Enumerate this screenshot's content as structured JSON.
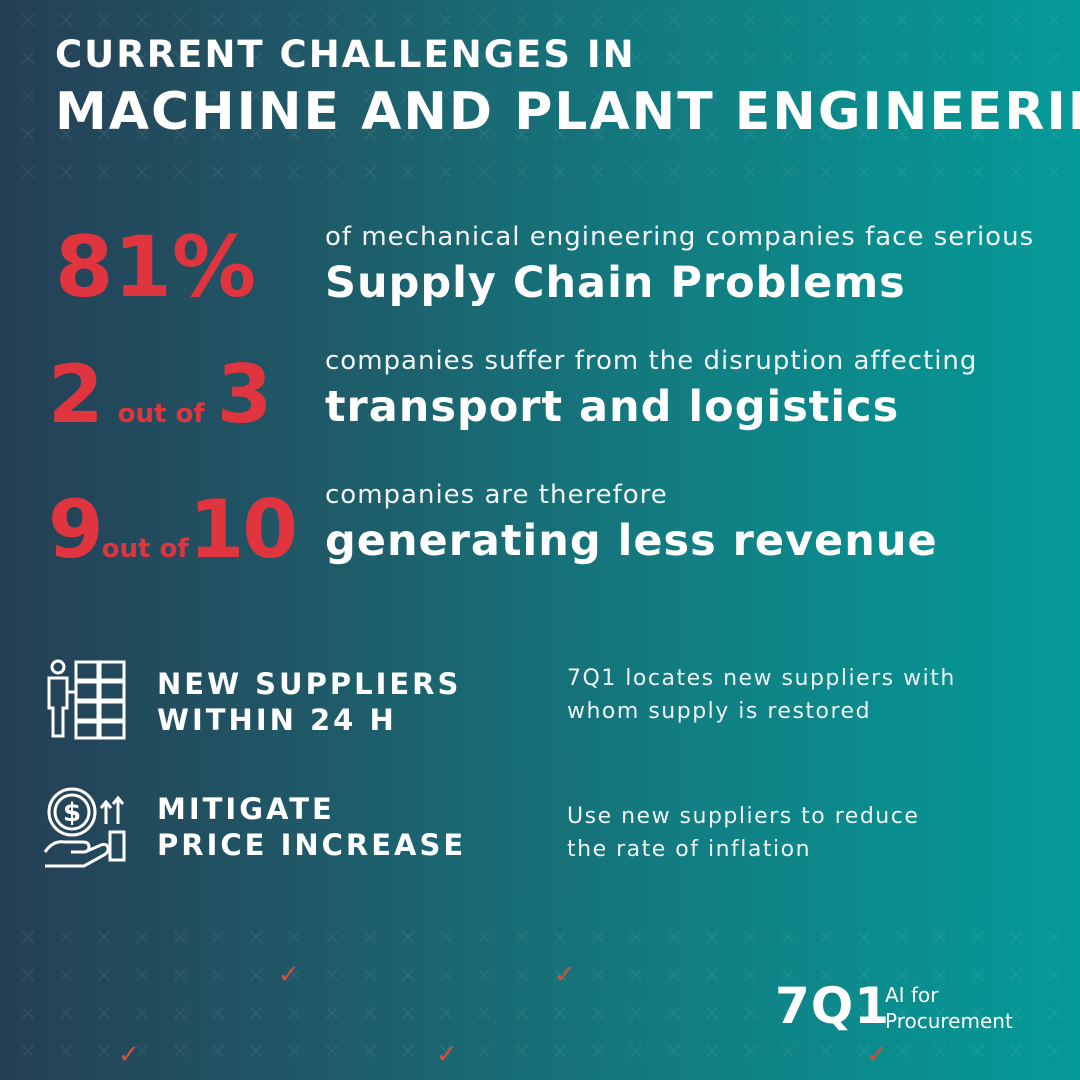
{
  "header": {
    "title_line1": "CURRENT CHALLENGES IN",
    "title_line2": "MACHINE AND PLANT ENGINEERING"
  },
  "stats": [
    {
      "big": "81%",
      "small_text": "of mechanical engineering companies face serious",
      "bold_text": "Supply Chain Problems"
    },
    {
      "big_a": "2",
      "connector": "out of",
      "big_b": "3",
      "small_text": "companies suffer from the disruption affecting",
      "bold_text": "transport and logistics"
    },
    {
      "big_a": "9",
      "connector": "out of",
      "big_b": "10",
      "small_text": "companies are therefore",
      "bold_text": "generating less revenue"
    }
  ],
  "features": [
    {
      "icon": "supplier-boxes-icon",
      "title_line1": "NEW SUPPLIERS",
      "title_line2": "WITHIN 24 H",
      "desc_line1": "7Q1 locates new suppliers with",
      "desc_line2": "whom supply is restored"
    },
    {
      "icon": "price-increase-icon",
      "title_line1": "MITIGATE",
      "title_line2": "PRICE INCREASE",
      "desc_line1": "Use new suppliers to reduce",
      "desc_line2": "the rate of inflation"
    }
  ],
  "logo": {
    "mark": "7Q1",
    "tagline_line1": "AI for",
    "tagline_line2": "Procurement"
  },
  "colors": {
    "accent_red": "#e0353f",
    "check_color": "#c9533e",
    "bg_left": "#253f55",
    "bg_right": "#049a98"
  }
}
